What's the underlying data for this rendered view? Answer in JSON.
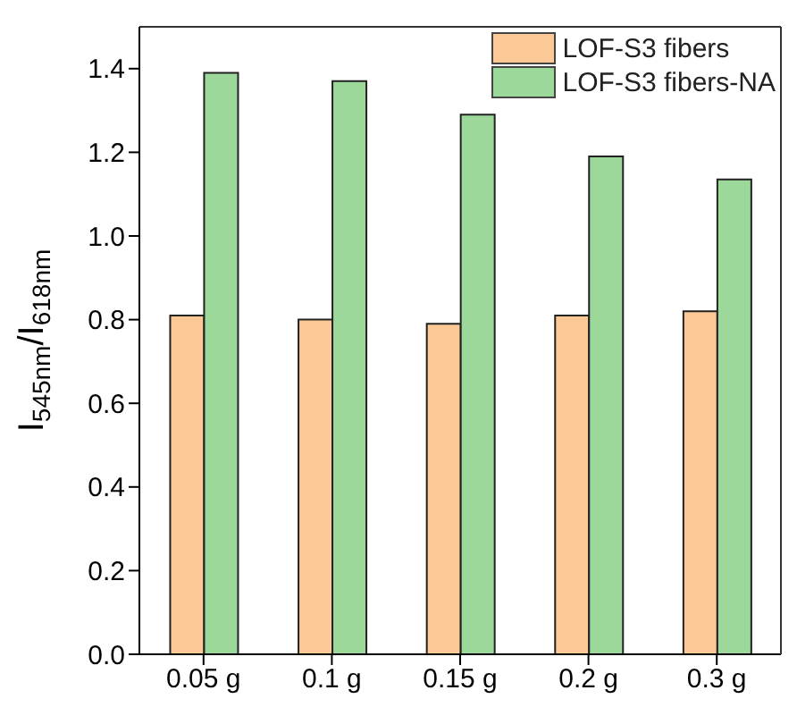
{
  "chart_data": {
    "type": "bar",
    "ylabel": "I$_{545nm}$/I$_{618nm}$",
    "categories": [
      "0.05 g",
      "0.1 g",
      "0.15 g",
      "0.2 g",
      "0.3 g"
    ],
    "series": [
      {
        "name": "LOF-S3 fibers",
        "color": "#fcc896",
        "values": [
          0.81,
          0.8,
          0.79,
          0.81,
          0.82
        ]
      },
      {
        "name": "LOF-S3 fibers-NA",
        "color": "#9dd89b",
        "values": [
          1.39,
          1.37,
          1.29,
          1.19,
          1.135
        ]
      }
    ],
    "ylim": [
      0,
      1.5
    ],
    "yticks": [
      {
        "value": 0,
        "label": "0.0"
      },
      0.2,
      0.4,
      0.6,
      0.8,
      {
        "value": 1,
        "label": "1.0"
      },
      1.2,
      1.4
    ],
    "grid": false,
    "legend": "top right"
  }
}
